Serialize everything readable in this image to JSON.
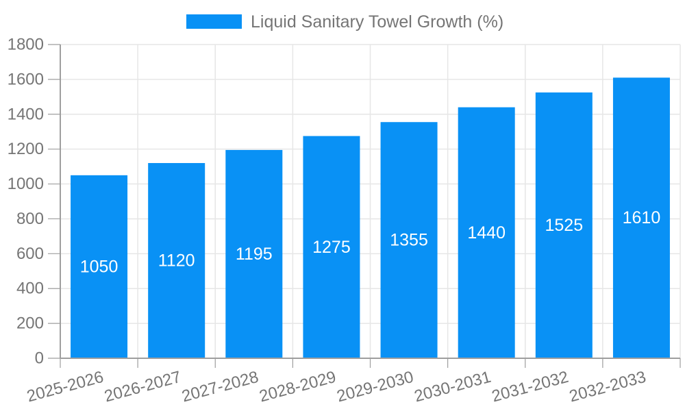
{
  "chart_data": {
    "type": "bar",
    "title": "Liquid Sanitary Towel Growth (%)",
    "legend": {
      "position": "top",
      "entries": [
        "Liquid Sanitary Towel Growth (%)"
      ]
    },
    "categories": [
      "2025-2026",
      "2026-2027",
      "2027-2028",
      "2028-2029",
      "2029-2030",
      "2030-2031",
      "2031-2032",
      "2032-2033"
    ],
    "series": [
      {
        "name": "Liquid Sanitary Towel Growth (%)",
        "values": [
          1050,
          1120,
          1195,
          1275,
          1355,
          1440,
          1525,
          1610
        ]
      }
    ],
    "xlabel": "",
    "ylabel": "",
    "ylim": [
      0,
      1800
    ],
    "ytick_step": 200,
    "yticks": [
      "0",
      "200",
      "400",
      "600",
      "800",
      "1000",
      "1200",
      "1400",
      "1600",
      "1800"
    ],
    "grid": true,
    "value_labels_position": "inside-center",
    "colors": {
      "bar": "#0991f5",
      "axis_text": "#757575",
      "value_label_text": "#ffffff",
      "gridline": "#e6e6e6",
      "axis_line": "#9e9e9e",
      "background": "#ffffff"
    }
  }
}
